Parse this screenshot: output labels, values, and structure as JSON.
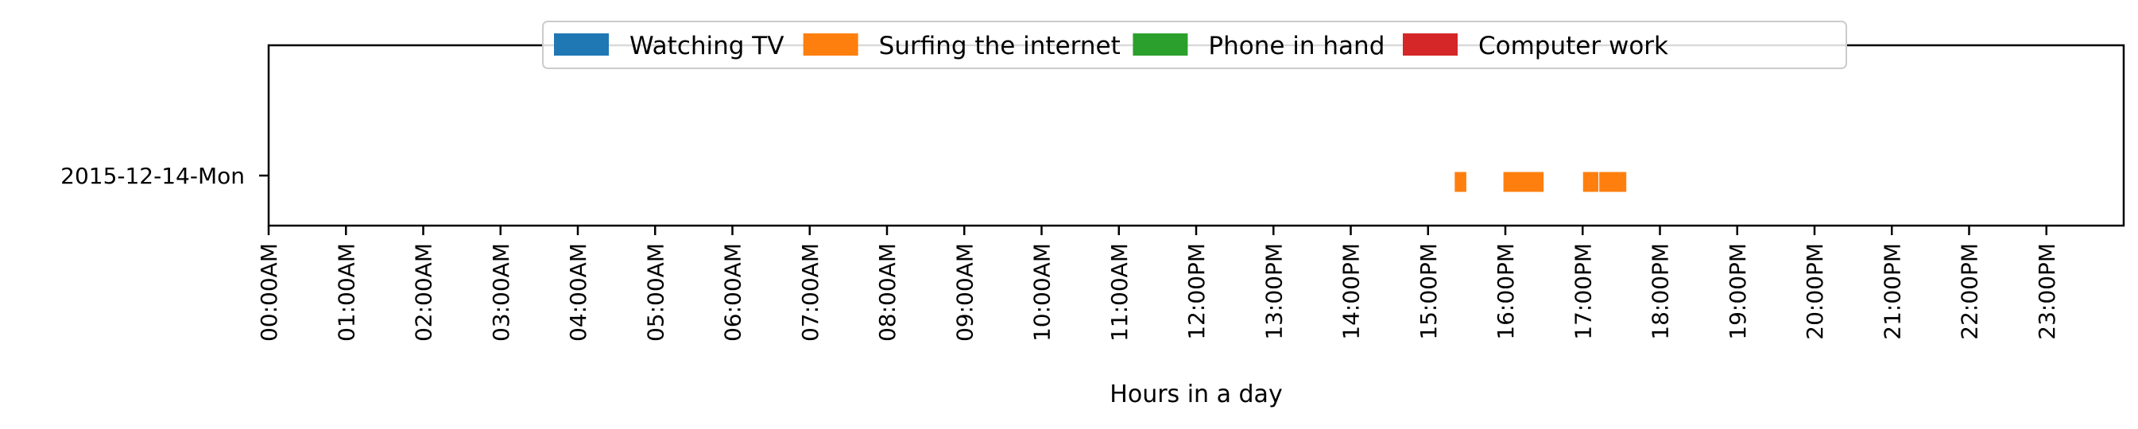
{
  "chart_data": {
    "type": "bar",
    "orientation": "horizontal-timeline",
    "title": "",
    "xlabel": "Hours in a day",
    "ylabel": "",
    "xlim": [
      0,
      24
    ],
    "x_ticks": [
      {
        "value": 0,
        "label": "00:00AM"
      },
      {
        "value": 1,
        "label": "01:00AM"
      },
      {
        "value": 2,
        "label": "02:00AM"
      },
      {
        "value": 3,
        "label": "03:00AM"
      },
      {
        "value": 4,
        "label": "04:00AM"
      },
      {
        "value": 5,
        "label": "05:00AM"
      },
      {
        "value": 6,
        "label": "06:00AM"
      },
      {
        "value": 7,
        "label": "07:00AM"
      },
      {
        "value": 8,
        "label": "08:00AM"
      },
      {
        "value": 9,
        "label": "09:00AM"
      },
      {
        "value": 10,
        "label": "10:00AM"
      },
      {
        "value": 11,
        "label": "11:00AM"
      },
      {
        "value": 12,
        "label": "12:00PM"
      },
      {
        "value": 13,
        "label": "13:00PM"
      },
      {
        "value": 14,
        "label": "14:00PM"
      },
      {
        "value": 15,
        "label": "15:00PM"
      },
      {
        "value": 16,
        "label": "16:00PM"
      },
      {
        "value": 17,
        "label": "17:00PM"
      },
      {
        "value": 18,
        "label": "18:00PM"
      },
      {
        "value": 19,
        "label": "19:00PM"
      },
      {
        "value": 20,
        "label": "20:00PM"
      },
      {
        "value": 21,
        "label": "21:00PM"
      },
      {
        "value": 22,
        "label": "22:00PM"
      },
      {
        "value": 23,
        "label": "23:00PM"
      }
    ],
    "categories": [
      "2015-12-14-Mon"
    ],
    "legend": {
      "placement": "top-center",
      "entries": [
        {
          "name": "Watching TV",
          "color": "#1f77b4"
        },
        {
          "name": "Surfing the internet",
          "color": "#ff7f0e"
        },
        {
          "name": "Phone in hand",
          "color": "#2ca02c"
        },
        {
          "name": "Computer work",
          "color": "#d62728"
        }
      ]
    },
    "series": [
      {
        "name": "Watching TV",
        "color": "#1f77b4",
        "segments": []
      },
      {
        "name": "Surfing the internet",
        "color": "#ff7f0e",
        "segments": [
          {
            "category": "2015-12-14-Mon",
            "start": 15.34,
            "end": 15.5
          },
          {
            "category": "2015-12-14-Mon",
            "start": 15.97,
            "end": 16.5
          },
          {
            "category": "2015-12-14-Mon",
            "start": 17.0,
            "end": 17.21
          },
          {
            "category": "2015-12-14-Mon",
            "start": 17.21,
            "end": 17.57
          }
        ]
      },
      {
        "name": "Phone in hand",
        "color": "#2ca02c",
        "segments": []
      },
      {
        "name": "Computer work",
        "color": "#d62728",
        "segments": []
      }
    ],
    "grid": false
  }
}
